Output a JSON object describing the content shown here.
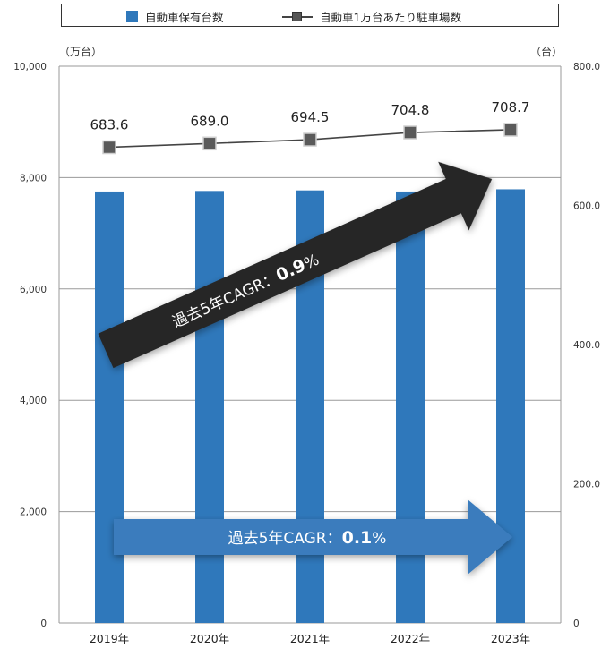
{
  "legend": {
    "bar_label": "自動車保有台数",
    "line_label": "自動車1万台あたり駐車場数"
  },
  "units": {
    "left": "（万台）",
    "right": "（台）"
  },
  "chart_data": {
    "type": "bar",
    "categories": [
      "2019年",
      "2020年",
      "2021年",
      "2022年",
      "2023年"
    ],
    "series": [
      {
        "name": "自動車保有台数",
        "type": "bar",
        "axis": "left",
        "values": [
          7750,
          7760,
          7770,
          7750,
          7790
        ]
      },
      {
        "name": "自動車1万台あたり駐車場数",
        "type": "line",
        "axis": "right",
        "values": [
          683.6,
          689.0,
          694.5,
          704.8,
          708.7
        ],
        "labels": [
          "683.6",
          "689.0",
          "694.5",
          "704.8",
          "708.7"
        ]
      }
    ],
    "y_left": {
      "ylim": [
        0,
        10000
      ],
      "ticks": [
        0,
        2000,
        4000,
        6000,
        8000,
        10000
      ],
      "tick_labels": [
        "0",
        "2,000",
        "4,000",
        "6,000",
        "8,000",
        "10,000"
      ]
    },
    "y_right": {
      "ylim": [
        0,
        800
      ],
      "ticks": [
        0,
        200,
        400,
        600,
        800
      ],
      "tick_labels": [
        "0",
        "200.0",
        "400.0",
        "600.0",
        "800.0"
      ]
    },
    "annotations": [
      {
        "prefix": "過去5年CAGR：",
        "value": "0.9",
        "suffix": "%",
        "style": "dark-arrow"
      },
      {
        "prefix": "過去5年CAGR：",
        "value": "0.1",
        "suffix": "%",
        "style": "blue-arrow"
      }
    ],
    "colors": {
      "bar": "#2f78bb",
      "line": "#444444",
      "marker": "#5a5a5a",
      "dark_arrow": "#262626",
      "blue_arrow": "#3a7cbd"
    },
    "grid": true,
    "legend_position": "top"
  }
}
